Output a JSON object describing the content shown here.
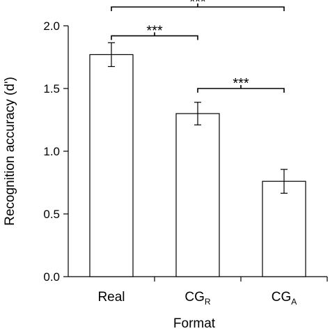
{
  "chart_data": {
    "type": "bar",
    "title": "",
    "xlabel": "Format",
    "ylabel": "Recognition accuracy (d')",
    "ylim": [
      0,
      2.0
    ],
    "yticks": [
      0.0,
      0.5,
      1.0,
      1.5,
      2.0
    ],
    "ytick_labels": [
      "0.0",
      "0.5",
      "1.0",
      "1.5",
      "2.0"
    ],
    "categories": [
      {
        "base": "Real",
        "sub": ""
      },
      {
        "base": "CG",
        "sub": "R"
      },
      {
        "base": "CG",
        "sub": "A"
      }
    ],
    "values": [
      1.77,
      1.3,
      0.76
    ],
    "errors": [
      0.095,
      0.09,
      0.095
    ],
    "significance": [
      {
        "from": 0,
        "to": 1,
        "label": "***",
        "y": 1.92
      },
      {
        "from": 0,
        "to": 2,
        "label": "***",
        "y": 2.15
      },
      {
        "from": 1,
        "to": 2,
        "label": "***",
        "y": 1.5
      }
    ],
    "colors": {
      "bar_fill": "#ffffff",
      "stroke": "#000000"
    }
  }
}
